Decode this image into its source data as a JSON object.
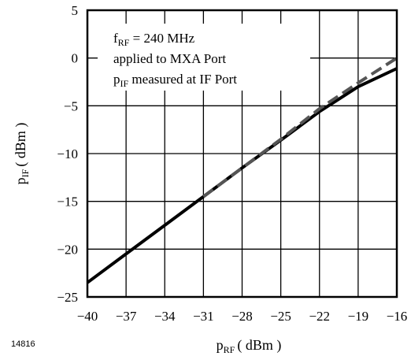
{
  "chart_data": {
    "type": "line",
    "xlabel": {
      "main": "p",
      "sub": "RF",
      "unit": "( dBm )"
    },
    "ylabel": {
      "main": "p",
      "sub": "IF",
      "unit": "( dBm )"
    },
    "xlim": [
      -40,
      -16
    ],
    "ylim": [
      -25,
      5
    ],
    "xticks": [
      -40,
      -37,
      -34,
      -31,
      -28,
      -25,
      -22,
      -19,
      -16
    ],
    "yticks": [
      5,
      0,
      -5,
      -10,
      -15,
      -20,
      -25
    ],
    "xtick_labels": [
      "−40",
      "−37",
      "−34",
      "−31",
      "−28",
      "−25",
      "−22",
      "−19",
      "−16"
    ],
    "ytick_labels": [
      "5",
      "0",
      "−5",
      "−10",
      "−15",
      "−20",
      "−25"
    ],
    "grid": true,
    "annotation_lines": [
      {
        "main": "f",
        "sub": "RF",
        "rest": " = 240 MHz"
      },
      {
        "main": "applied to MXA Port",
        "sub": "",
        "rest": ""
      },
      {
        "main": "p",
        "sub": "IF",
        "rest": " measured at IF Port"
      }
    ],
    "series": [
      {
        "style": "solid",
        "color": "#000000",
        "x": [
          -40,
          -37,
          -34,
          -31,
          -28,
          -25,
          -22,
          -19,
          -16
        ],
        "y": [
          -23.5,
          -20.5,
          -17.5,
          -14.5,
          -11.5,
          -8.6,
          -5.6,
          -3.0,
          -1.1
        ]
      },
      {
        "style": "dashed",
        "color": "#555555",
        "x": [
          -31,
          -28,
          -25,
          -22,
          -19,
          -16
        ],
        "y": [
          -14.5,
          -11.5,
          -8.5,
          -5.3,
          -2.6,
          0.0
        ]
      }
    ]
  },
  "figure_id": "14816"
}
